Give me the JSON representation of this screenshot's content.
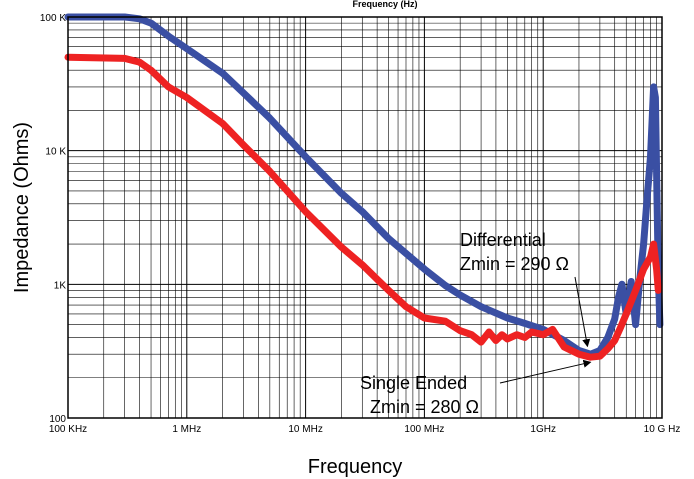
{
  "chart_data": {
    "type": "line",
    "top_title": "Frequency (Hz)",
    "xlabel": "Frequency",
    "ylabel": "Impedance (Ohms)",
    "x_scale": "log",
    "y_scale": "log",
    "xlim": [
      100000,
      10000000000
    ],
    "ylim": [
      100,
      100000
    ],
    "grid": true,
    "x_ticks": [
      {
        "value": 100000,
        "label": "100 KHz"
      },
      {
        "value": 1000000,
        "label": "1 MHz"
      },
      {
        "value": 10000000,
        "label": "10 MHz"
      },
      {
        "value": 100000000,
        "label": "100 MHz"
      },
      {
        "value": 1000000000,
        "label": "1GHz"
      },
      {
        "value": 10000000000,
        "label": "10 G Hz"
      }
    ],
    "y_ticks": [
      {
        "value": 100,
        "label": "100"
      },
      {
        "value": 1000,
        "label": "1K"
      },
      {
        "value": 10000,
        "label": "10 K"
      },
      {
        "value": 100000,
        "label": "100 K"
      }
    ],
    "series": [
      {
        "name": "Differential",
        "color": "#3a4fa3",
        "points": [
          [
            100000,
            100000
          ],
          [
            300000,
            100000
          ],
          [
            400000,
            97000
          ],
          [
            500000,
            90000
          ],
          [
            700000,
            72000
          ],
          [
            1000000,
            58000
          ],
          [
            2000000,
            38000
          ],
          [
            3000000,
            27000
          ],
          [
            5000000,
            17500
          ],
          [
            10000000,
            9000
          ],
          [
            20000000,
            4800
          ],
          [
            30000000,
            3500
          ],
          [
            50000000,
            2200
          ],
          [
            100000000,
            1300
          ],
          [
            150000000,
            980
          ],
          [
            200000000,
            830
          ],
          [
            300000000,
            680
          ],
          [
            500000000,
            560
          ],
          [
            700000000,
            510
          ],
          [
            1000000000,
            460
          ],
          [
            1500000000,
            380
          ],
          [
            2000000000,
            320
          ],
          [
            2500000000,
            300
          ],
          [
            3000000000,
            320
          ],
          [
            3500000000,
            400
          ],
          [
            4000000000,
            550
          ],
          [
            4300000000,
            800
          ],
          [
            4600000000,
            1000
          ],
          [
            5000000000,
            600
          ],
          [
            5500000000,
            1050
          ],
          [
            6000000000,
            500
          ],
          [
            6500000000,
            1100
          ],
          [
            7000000000,
            2000
          ],
          [
            7500000000,
            4500
          ],
          [
            8000000000,
            9000
          ],
          [
            8500000000,
            30000
          ],
          [
            8800000000,
            25000
          ],
          [
            9100000000,
            4000
          ],
          [
            9300000000,
            1200
          ],
          [
            9600000000,
            500
          ]
        ]
      },
      {
        "name": "Single Ended",
        "color": "#ee2222",
        "points": [
          [
            100000,
            50000
          ],
          [
            300000,
            49000
          ],
          [
            400000,
            46000
          ],
          [
            500000,
            40000
          ],
          [
            700000,
            30000
          ],
          [
            1000000,
            25000
          ],
          [
            2000000,
            16000
          ],
          [
            3000000,
            11000
          ],
          [
            5000000,
            7000
          ],
          [
            10000000,
            3500
          ],
          [
            20000000,
            1900
          ],
          [
            30000000,
            1400
          ],
          [
            50000000,
            900
          ],
          [
            70000000,
            680
          ],
          [
            100000000,
            560
          ],
          [
            150000000,
            530
          ],
          [
            200000000,
            450
          ],
          [
            250000000,
            420
          ],
          [
            300000000,
            370
          ],
          [
            350000000,
            440
          ],
          [
            400000000,
            380
          ],
          [
            450000000,
            420
          ],
          [
            500000000,
            390
          ],
          [
            600000000,
            420
          ],
          [
            700000000,
            400
          ],
          [
            800000000,
            440
          ],
          [
            1000000000,
            420
          ],
          [
            1200000000,
            460
          ],
          [
            1500000000,
            340
          ],
          [
            2000000000,
            300
          ],
          [
            2500000000,
            285
          ],
          [
            3000000000,
            290
          ],
          [
            3500000000,
            330
          ],
          [
            4000000000,
            380
          ],
          [
            4500000000,
            480
          ],
          [
            5000000000,
            600
          ],
          [
            6000000000,
            900
          ],
          [
            7000000000,
            1300
          ],
          [
            8000000000,
            1600
          ],
          [
            8500000000,
            2000
          ],
          [
            9000000000,
            1300
          ],
          [
            9300000000,
            900
          ]
        ]
      }
    ],
    "annotations": [
      {
        "id": "differential",
        "lines": [
          "Differential",
          "Zmin = 290 Ω"
        ],
        "target": [
          2500000000,
          300
        ]
      },
      {
        "id": "single",
        "lines": [
          "Single Ended",
          "Zmin = 280 Ω"
        ],
        "target": [
          2700000000,
          290
        ]
      }
    ]
  }
}
